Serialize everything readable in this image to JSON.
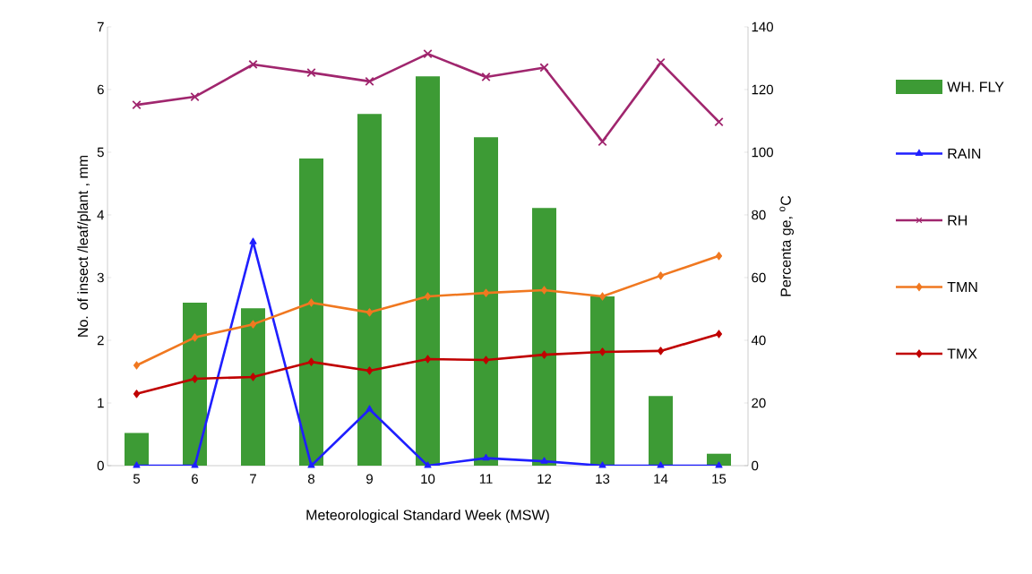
{
  "chart_data": {
    "type": "bar",
    "xlabel": "Meteorological Standard Week (MSW)",
    "ylabel": "No. of insect /leaf/plant , mm",
    "y2label": "Percenta ge, $^{o}$C",
    "categories": [
      "5",
      "6",
      "7",
      "8",
      "9",
      "10",
      "11",
      "12",
      "13",
      "14",
      "15"
    ],
    "series": [
      {
        "name": "WH. FLY",
        "color": "#3d9b35",
        "values": [
          0.52,
          2.6,
          2.51,
          4.9,
          5.61,
          6.21,
          5.24,
          4.11,
          2.7,
          1.11,
          0.19
        ]
      },
      {
        "name": "RAIN",
        "type": "line",
        "marker": "triangle",
        "color": "#1f1fff",
        "values": [
          0,
          0,
          3.57,
          0,
          0.9,
          0,
          0.12,
          0.07,
          0,
          0,
          0
        ]
      },
      {
        "name": "RH",
        "type": "line",
        "axis": "y2",
        "marker": "cross",
        "color": "#a0266e",
        "values": [
          115.1,
          117.7,
          128,
          125.4,
          122.6,
          131.4,
          124,
          127,
          103.4,
          128.6,
          109.7
        ]
      },
      {
        "name": "TMN",
        "type": "line",
        "axis": "y2",
        "marker": "diamond",
        "color": "#f07820",
        "values": [
          32,
          40.9,
          45.1,
          52,
          48.9,
          54,
          55.1,
          56,
          54,
          60.6,
          66.9
        ]
      },
      {
        "name": "TMX",
        "type": "line",
        "axis": "y2",
        "marker": "diamond",
        "color": "#c00000",
        "values": [
          22.9,
          27.7,
          28.3,
          33.1,
          30.3,
          34,
          33.7,
          35.4,
          36.3,
          36.6,
          42
        ]
      }
    ],
    "ylim": [
      0,
      7
    ],
    "yticks": [
      0,
      1,
      2,
      3,
      4,
      5,
      6,
      7
    ],
    "y2lim": [
      0,
      140
    ],
    "y2ticks": [
      0,
      20,
      40,
      60,
      80,
      100,
      120,
      140
    ],
    "legend": "right"
  }
}
